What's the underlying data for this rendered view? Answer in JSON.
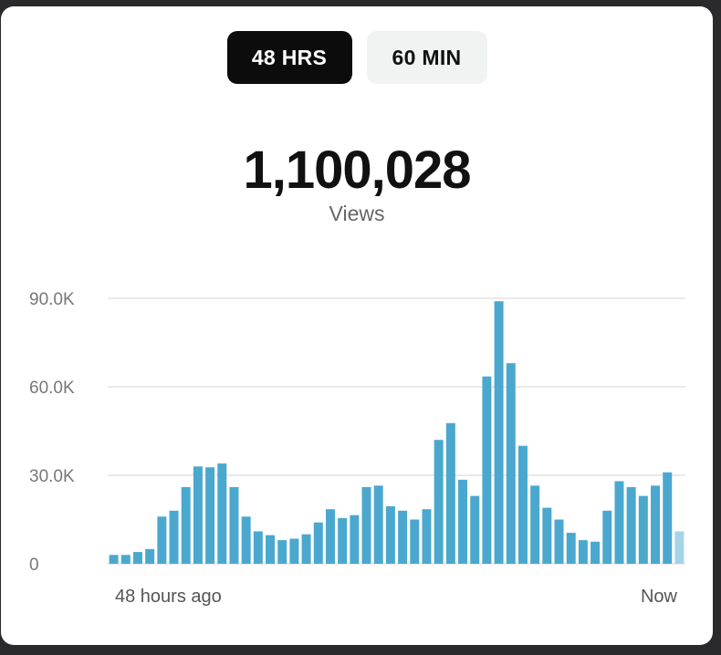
{
  "tabs": [
    {
      "label": "48 HRS",
      "active": true
    },
    {
      "label": "60 MIN",
      "active": false
    }
  ],
  "summary": {
    "total": "1,100,028",
    "metric_label": "Views"
  },
  "colors": {
    "bar": "#4aa8cf",
    "bar_current": "#a5d4e6",
    "grid": "#e4e4e4",
    "axis_text": "#777777"
  },
  "chart_data": {
    "type": "bar",
    "ylim": [
      0,
      90000
    ],
    "yticks": [
      0,
      30000,
      60000,
      90000
    ],
    "ytick_labels": [
      "0",
      "30.0K",
      "60.0K",
      "90.0K"
    ],
    "x_start_label": "48 hours ago",
    "x_end_label": "Now",
    "grid": true,
    "values": [
      3000,
      3000,
      4000,
      5000,
      16000,
      18000,
      26000,
      33000,
      32700,
      34000,
      26000,
      16000,
      11000,
      9700,
      8000,
      8500,
      10000,
      14000,
      18500,
      15500,
      16500,
      26000,
      26500,
      19500,
      18000,
      15000,
      18500,
      42000,
      47700,
      28500,
      23000,
      63500,
      89000,
      68000,
      40000,
      26500,
      19000,
      15000,
      10500,
      8000,
      7500,
      18000,
      28000,
      26000,
      23000,
      26500,
      31000,
      11000
    ],
    "current_index": 47
  }
}
